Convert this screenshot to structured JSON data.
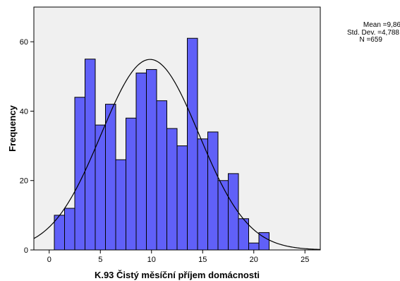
{
  "chart_data": {
    "type": "bar",
    "subtype": "histogram-with-normal-curve",
    "xlabel": "K.93 Čistý měsíční příjem domácnosti",
    "ylabel": "Frequency",
    "xlim": [
      -1.5,
      26.5
    ],
    "ylim": [
      0,
      70
    ],
    "xticks": [
      0,
      5,
      10,
      15,
      20,
      25
    ],
    "xtick_labels": [
      "0",
      "5",
      "10",
      "15",
      "20",
      "25"
    ],
    "yticks": [
      0,
      20,
      40,
      60
    ],
    "ytick_labels": [
      "0",
      "20",
      "40",
      "60"
    ],
    "bin_width": 1,
    "bins": [
      {
        "x": 1,
        "count": 10
      },
      {
        "x": 2,
        "count": 12
      },
      {
        "x": 3,
        "count": 44
      },
      {
        "x": 4,
        "count": 55
      },
      {
        "x": 5,
        "count": 36
      },
      {
        "x": 6,
        "count": 42
      },
      {
        "x": 7,
        "count": 26
      },
      {
        "x": 8,
        "count": 38
      },
      {
        "x": 9,
        "count": 51
      },
      {
        "x": 10,
        "count": 52
      },
      {
        "x": 11,
        "count": 43
      },
      {
        "x": 12,
        "count": 35
      },
      {
        "x": 13,
        "count": 30
      },
      {
        "x": 14,
        "count": 61
      },
      {
        "x": 15,
        "count": 32
      },
      {
        "x": 16,
        "count": 34
      },
      {
        "x": 17,
        "count": 20
      },
      {
        "x": 18,
        "count": 22
      },
      {
        "x": 19,
        "count": 9
      },
      {
        "x": 20,
        "count": 2
      },
      {
        "x": 21,
        "count": 5
      }
    ],
    "normal_curve": {
      "mean": 9.86,
      "sd": 4.788,
      "n": 659,
      "bin_width": 1
    },
    "stats_text": {
      "mean": "Mean =9,86",
      "sd": "Std. Dev. =4,788",
      "n": "N =659"
    },
    "grid": false,
    "colors": {
      "plot_background": "#f0f0f0",
      "bar_fill": "#6060f8",
      "bar_stroke": "#000000",
      "curve": "#000000",
      "axis": "#000000"
    }
  }
}
